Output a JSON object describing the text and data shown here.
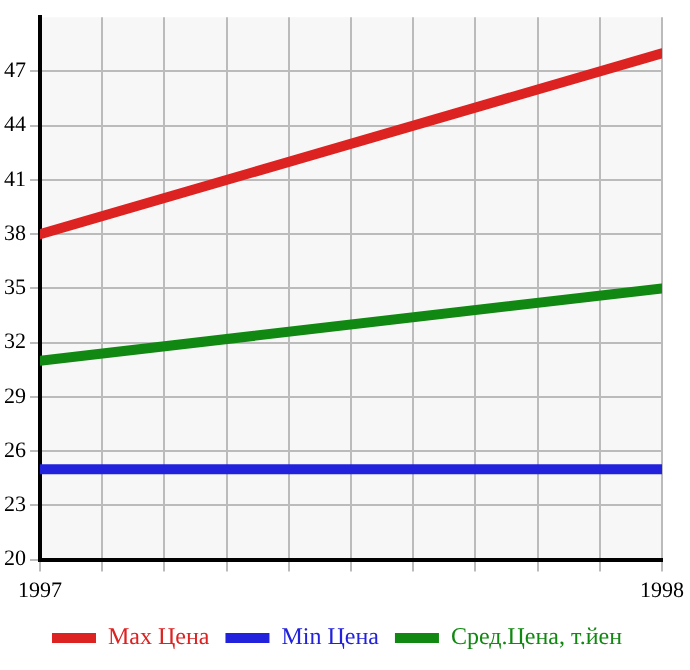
{
  "chart_data": {
    "type": "line",
    "x": [
      1997,
      1998
    ],
    "series": [
      {
        "name": "Max Цена",
        "color": "#dd2222",
        "values": [
          38,
          48
        ]
      },
      {
        "name": "Min Цена",
        "color": "#2222dd",
        "values": [
          25,
          25
        ]
      },
      {
        "name": "Сред.Цена, т.йен",
        "color": "#118811",
        "values": [
          31,
          35
        ]
      }
    ],
    "xlim": [
      1997,
      1998
    ],
    "xticks": [
      1997,
      {
        "value": 1997.1,
        "label": null
      },
      {
        "value": 1997.2,
        "label": null
      },
      {
        "value": 1997.3,
        "label": null
      },
      {
        "value": 1997.4,
        "label": null
      },
      {
        "value": 1997.5,
        "label": null
      },
      {
        "value": 1997.6,
        "label": null
      },
      {
        "value": 1997.7,
        "label": null
      },
      {
        "value": 1997.8,
        "label": null
      },
      {
        "value": 1997.9,
        "label": null
      },
      1998
    ],
    "ylim": [
      20,
      50
    ],
    "yticks": [
      20,
      23,
      26,
      29,
      32,
      35,
      38,
      41,
      44,
      47
    ],
    "grid": true,
    "legend": "bottom",
    "marker": "none",
    "line_style": "solid"
  }
}
